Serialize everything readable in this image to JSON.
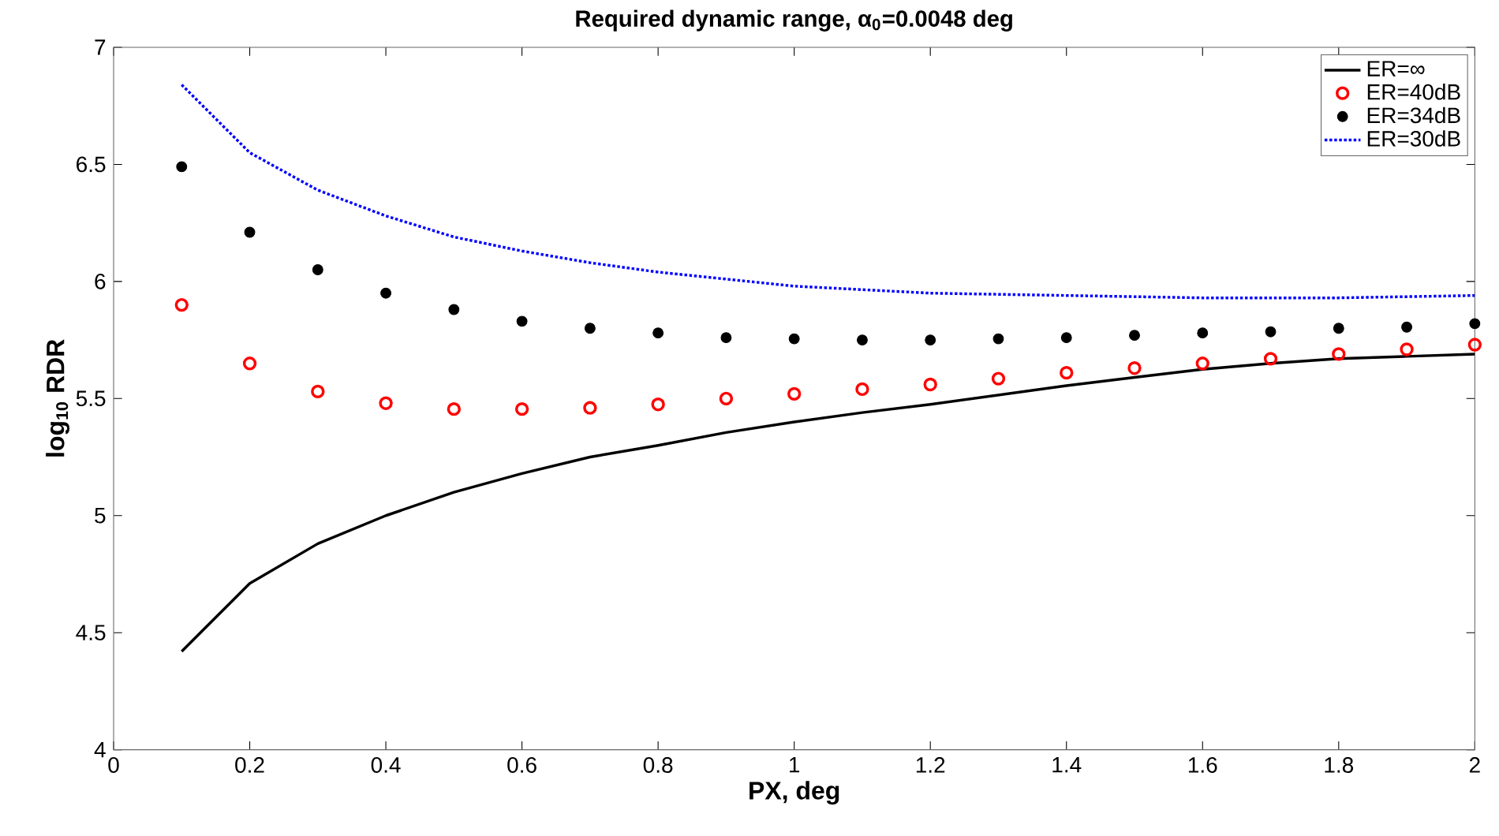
{
  "chart_data": {
    "type": "line",
    "title": "Required dynamic range, α$_{0}$=0.0048 deg",
    "xlabel": "PX, deg",
    "ylabel": "log$_{10}$ RDR",
    "xlim": [
      0,
      2
    ],
    "xticks": [
      0,
      0.2,
      0.4,
      0.6,
      0.8,
      1,
      1.2,
      1.4,
      1.6,
      1.8,
      2
    ],
    "ylim": [
      4,
      7
    ],
    "yticks": [
      4,
      4.5,
      5,
      5.5,
      6,
      6.5,
      7
    ],
    "legend": "top right",
    "series": [
      {
        "name": "ER=∞",
        "color": "#000000",
        "line_style": "solid",
        "marker": "none",
        "x": [
          0.1,
          0.2,
          0.3,
          0.4,
          0.5,
          0.6,
          0.7,
          0.8,
          0.9,
          1.0,
          1.1,
          1.2,
          1.3,
          1.4,
          1.5,
          1.6,
          1.7,
          1.8,
          1.9,
          2.0
        ],
        "values": [
          4.42,
          4.71,
          4.88,
          5.0,
          5.1,
          5.18,
          5.25,
          5.3,
          5.355,
          5.4,
          5.44,
          5.475,
          5.515,
          5.555,
          5.59,
          5.625,
          5.65,
          5.67,
          5.68,
          5.69
        ]
      },
      {
        "name": "ER=40dB",
        "type": "scatter",
        "color": "#ff0000",
        "marker": "circle",
        "x": [
          0.1,
          0.2,
          0.3,
          0.4,
          0.5,
          0.6,
          0.7,
          0.8,
          0.9,
          1.0,
          1.1,
          1.2,
          1.3,
          1.4,
          1.5,
          1.6,
          1.7,
          1.8,
          1.9,
          2.0
        ],
        "values": [
          5.9,
          5.65,
          5.53,
          5.48,
          5.455,
          5.455,
          5.46,
          5.475,
          5.5,
          5.52,
          5.54,
          5.56,
          5.585,
          5.61,
          5.63,
          5.65,
          5.67,
          5.69,
          5.71,
          5.73
        ]
      },
      {
        "name": "ER=34dB",
        "type": "scatter",
        "color": "#000000",
        "marker": "dot",
        "x": [
          0.1,
          0.2,
          0.3,
          0.4,
          0.5,
          0.6,
          0.7,
          0.8,
          0.9,
          1.0,
          1.1,
          1.2,
          1.3,
          1.4,
          1.5,
          1.6,
          1.7,
          1.8,
          1.9,
          2.0
        ],
        "values": [
          6.49,
          6.21,
          6.05,
          5.95,
          5.88,
          5.83,
          5.8,
          5.78,
          5.76,
          5.755,
          5.75,
          5.75,
          5.755,
          5.76,
          5.77,
          5.78,
          5.785,
          5.8,
          5.805,
          5.82
        ]
      },
      {
        "name": "ER=30dB",
        "color": "#0000ff",
        "line_style": "dotted",
        "marker": "none",
        "x": [
          0.1,
          0.2,
          0.3,
          0.4,
          0.5,
          0.6,
          0.7,
          0.8,
          0.9,
          1.0,
          1.2,
          1.4,
          1.6,
          1.8,
          2.0
        ],
        "values": [
          6.84,
          6.55,
          6.39,
          6.28,
          6.19,
          6.13,
          6.08,
          6.04,
          6.01,
          5.98,
          5.95,
          5.94,
          5.93,
          5.93,
          5.94
        ]
      }
    ]
  }
}
